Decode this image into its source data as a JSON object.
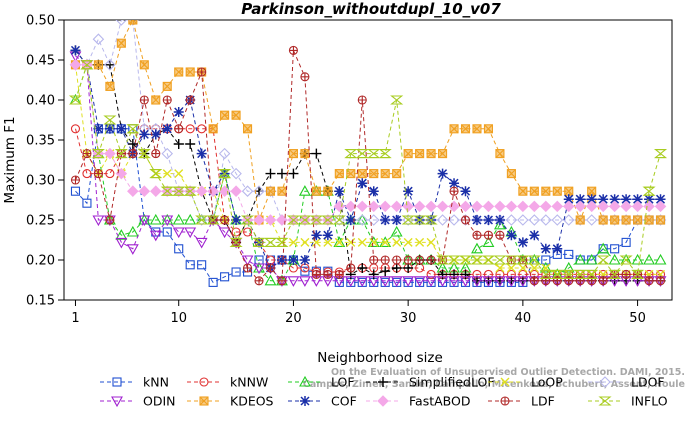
{
  "chart_data": {
    "type": "line",
    "title": "Parkinson_withoutdupl_10_v07",
    "xlabel": "Neighborhood size",
    "ylabel": "Maximum F1",
    "xlim": [
      0,
      53
    ],
    "ylim": [
      0.15,
      0.5
    ],
    "x_ticks": [
      1,
      10,
      20,
      30,
      40,
      50
    ],
    "y_ticks": [
      0.15,
      0.2,
      0.25,
      0.3,
      0.35,
      0.4,
      0.45,
      0.5
    ],
    "x": [
      1,
      2,
      3,
      4,
      5,
      6,
      7,
      8,
      9,
      10,
      11,
      12,
      13,
      14,
      15,
      16,
      17,
      18,
      19,
      20,
      21,
      22,
      23,
      24,
      25,
      26,
      27,
      28,
      29,
      30,
      31,
      32,
      33,
      34,
      35,
      36,
      37,
      38,
      39,
      40,
      41,
      42,
      43,
      44,
      45,
      46,
      47,
      48,
      49,
      50,
      51,
      52
    ],
    "series": [
      {
        "name": "kNN",
        "color": "#1f4fd1",
        "marker": "square",
        "values": [
          0.286,
          0.271,
          0.364,
          0.364,
          0.364,
          0.364,
          0.25,
          0.235,
          0.235,
          0.214,
          0.194,
          0.194,
          0.172,
          0.179,
          0.185,
          0.185,
          0.2,
          0.2,
          0.2,
          0.2,
          0.186,
          0.186,
          0.186,
          0.172,
          0.172,
          0.172,
          0.172,
          0.172,
          0.172,
          0.172,
          0.172,
          0.172,
          0.172,
          0.172,
          0.172,
          0.172,
          0.172,
          0.172,
          0.172,
          0.172,
          0.2,
          0.2,
          0.207,
          0.207,
          0.2,
          0.2,
          0.214,
          0.214,
          0.222,
          0.25,
          0.25,
          0.25
        ]
      },
      {
        "name": "kNNW",
        "color": "#e03030",
        "marker": "circle",
        "values": [
          0.364,
          0.308,
          0.308,
          0.308,
          0.333,
          0.333,
          0.364,
          0.364,
          0.364,
          0.364,
          0.364,
          0.364,
          0.364,
          0.25,
          0.235,
          0.235,
          0.222,
          0.2,
          0.2,
          0.19,
          0.19,
          0.185,
          0.185,
          0.185,
          0.19,
          0.19,
          0.19,
          0.19,
          0.19,
          0.19,
          0.19,
          0.182,
          0.182,
          0.182,
          0.182,
          0.182,
          0.182,
          0.182,
          0.182,
          0.182,
          0.182,
          0.182,
          0.182,
          0.182,
          0.182,
          0.182,
          0.182,
          0.182,
          0.182,
          0.182,
          0.182,
          0.182
        ]
      },
      {
        "name": "LOF",
        "color": "#22cc22",
        "marker": "triangle",
        "values": [
          0.4,
          0.444,
          0.333,
          0.25,
          0.231,
          0.235,
          0.25,
          0.25,
          0.25,
          0.25,
          0.25,
          0.25,
          0.25,
          0.308,
          0.25,
          0.25,
          0.19,
          0.174,
          0.174,
          0.2,
          0.286,
          0.286,
          0.286,
          0.222,
          0.25,
          0.25,
          0.222,
          0.222,
          0.235,
          0.2,
          0.2,
          0.2,
          0.19,
          0.19,
          0.19,
          0.214,
          0.222,
          0.244,
          0.235,
          0.2,
          0.2,
          0.19,
          0.182,
          0.19,
          0.2,
          0.2,
          0.214,
          0.2,
          0.2,
          0.2,
          0.2,
          0.2
        ]
      },
      {
        "name": "SimplifiedLOF",
        "color": "#000000",
        "marker": "plus",
        "values": [
          0.462,
          0.444,
          0.444,
          0.444,
          0.364,
          0.345,
          0.333,
          0.357,
          0.364,
          0.345,
          0.345,
          0.286,
          0.25,
          0.25,
          0.222,
          0.25,
          0.286,
          0.308,
          0.308,
          0.308,
          0.333,
          0.333,
          0.286,
          0.286,
          0.182,
          0.19,
          0.182,
          0.186,
          0.19,
          0.19,
          0.2,
          0.2,
          0.182,
          0.182,
          0.182,
          0.174,
          0.174,
          0.174,
          0.174,
          0.174,
          0.174,
          0.174,
          0.174,
          0.174,
          0.174,
          0.174,
          0.174,
          0.174,
          0.174,
          0.174,
          0.174,
          0.174
        ]
      },
      {
        "name": "LoOP",
        "color": "#e0e020",
        "marker": "x",
        "values": [
          0.444,
          0.333,
          0.308,
          0.333,
          0.308,
          0.333,
          0.333,
          0.308,
          0.308,
          0.308,
          0.286,
          0.286,
          0.286,
          0.25,
          0.25,
          0.25,
          0.25,
          0.25,
          0.222,
          0.222,
          0.222,
          0.222,
          0.222,
          0.222,
          0.222,
          0.222,
          0.222,
          0.222,
          0.222,
          0.222,
          0.222,
          0.222,
          0.2,
          0.2,
          0.2,
          0.2,
          0.2,
          0.19,
          0.19,
          0.19,
          0.19,
          0.19,
          0.182,
          0.182,
          0.182,
          0.182,
          0.182,
          0.182,
          0.182,
          0.182,
          0.182,
          0.182
        ]
      },
      {
        "name": "LDOF",
        "color": "#b8b8ec",
        "marker": "diamond",
        "values": [
          0.444,
          0.444,
          0.476,
          0.444,
          0.5,
          0.5,
          0.364,
          0.364,
          0.333,
          0.286,
          0.286,
          0.25,
          0.25,
          0.333,
          0.308,
          0.286,
          0.286,
          0.286,
          0.25,
          0.25,
          0.25,
          0.25,
          0.25,
          0.25,
          0.25,
          0.25,
          0.25,
          0.25,
          0.25,
          0.25,
          0.25,
          0.25,
          0.25,
          0.25,
          0.25,
          0.25,
          0.25,
          0.25,
          0.25,
          0.25,
          0.25,
          0.25,
          0.25,
          0.25,
          0.25,
          0.25,
          0.25,
          0.25,
          0.25,
          0.25,
          0.25,
          0.25
        ]
      },
      {
        "name": "ODIN",
        "color": "#a020d0",
        "marker": "triangle-down",
        "values": [
          0.455,
          0.444,
          0.25,
          0.25,
          0.222,
          0.214,
          0.25,
          0.231,
          0.25,
          0.235,
          0.235,
          0.222,
          0.25,
          0.235,
          0.222,
          0.2,
          0.19,
          0.19,
          0.174,
          0.174,
          0.174,
          0.174,
          0.174,
          0.174,
          0.174,
          0.174,
          0.174,
          0.174,
          0.174,
          0.174,
          0.174,
          0.174,
          0.174,
          0.174,
          0.174,
          0.174,
          0.174,
          0.174,
          0.174,
          0.174,
          0.174,
          0.174,
          0.174,
          0.174,
          0.174,
          0.174,
          0.174,
          0.174,
          0.174,
          0.174,
          0.174,
          0.174
        ]
      },
      {
        "name": "KDEOS",
        "color": "#f0a020",
        "marker": "square-x",
        "values": [
          0.444,
          0.444,
          0.444,
          0.417,
          0.471,
          0.5,
          0.444,
          0.4,
          0.417,
          0.435,
          0.435,
          0.435,
          0.364,
          0.381,
          0.381,
          0.364,
          0.25,
          0.286,
          0.286,
          0.333,
          0.333,
          0.286,
          0.286,
          0.308,
          0.308,
          0.308,
          0.308,
          0.308,
          0.308,
          0.333,
          0.333,
          0.333,
          0.333,
          0.364,
          0.364,
          0.364,
          0.364,
          0.333,
          0.308,
          0.286,
          0.286,
          0.286,
          0.286,
          0.286,
          0.25,
          0.286,
          0.25,
          0.25,
          0.25,
          0.25,
          0.25,
          0.25
        ]
      },
      {
        "name": "COF",
        "color": "#1a2fa8",
        "marker": "asterisk",
        "values": [
          0.462,
          0.444,
          0.364,
          0.364,
          0.364,
          0.333,
          0.357,
          0.357,
          0.364,
          0.385,
          0.4,
          0.333,
          0.286,
          0.308,
          0.25,
          0.25,
          0.222,
          0.19,
          0.2,
          0.2,
          0.2,
          0.231,
          0.231,
          0.286,
          0.25,
          0.296,
          0.286,
          0.25,
          0.25,
          0.286,
          0.25,
          0.25,
          0.308,
          0.296,
          0.286,
          0.25,
          0.25,
          0.25,
          0.231,
          0.222,
          0.231,
          0.214,
          0.214,
          0.276,
          0.276,
          0.276,
          0.276,
          0.276,
          0.276,
          0.276,
          0.276,
          0.276
        ]
      },
      {
        "name": "FastABOD",
        "color": "#f4a8e8",
        "marker": "diamond-filled",
        "values": [
          0.444,
          0.444,
          0.333,
          0.333,
          0.308,
          0.286,
          0.286,
          0.286,
          0.286,
          0.286,
          0.286,
          0.286,
          0.286,
          0.286,
          0.286,
          0.25,
          0.25,
          0.25,
          0.25,
          0.25,
          0.25,
          0.25,
          0.25,
          0.267,
          0.267,
          0.267,
          0.267,
          0.267,
          0.267,
          0.267,
          0.267,
          0.267,
          0.267,
          0.267,
          0.267,
          0.267,
          0.267,
          0.267,
          0.267,
          0.267,
          0.267,
          0.267,
          0.267,
          0.267,
          0.267,
          0.267,
          0.267,
          0.267,
          0.267,
          0.267,
          0.267,
          0.267
        ]
      },
      {
        "name": "LDF",
        "color": "#b02828",
        "marker": "circle-plus",
        "values": [
          0.3,
          0.333,
          0.308,
          0.25,
          0.333,
          0.333,
          0.4,
          0.333,
          0.4,
          0.364,
          0.4,
          0.435,
          0.25,
          0.25,
          0.222,
          0.19,
          0.174,
          0.19,
          0.174,
          0.462,
          0.429,
          0.182,
          0.182,
          0.182,
          0.19,
          0.4,
          0.2,
          0.2,
          0.2,
          0.2,
          0.2,
          0.2,
          0.2,
          0.286,
          0.25,
          0.231,
          0.231,
          0.231,
          0.2,
          0.2,
          0.174,
          0.174,
          0.174,
          0.174,
          0.174,
          0.174,
          0.174,
          0.182,
          0.182,
          0.182,
          0.174,
          0.174
        ]
      },
      {
        "name": "INFLO",
        "color": "#a8cc20",
        "marker": "hourglass",
        "values": [
          0.4,
          0.444,
          0.333,
          0.375,
          0.333,
          0.364,
          0.333,
          0.308,
          0.286,
          0.286,
          0.286,
          0.25,
          0.25,
          0.308,
          0.222,
          0.25,
          0.222,
          0.222,
          0.222,
          0.25,
          0.25,
          0.25,
          0.25,
          0.25,
          0.333,
          0.333,
          0.333,
          0.333,
          0.4,
          0.25,
          0.25,
          0.25,
          0.2,
          0.2,
          0.2,
          0.2,
          0.2,
          0.2,
          0.2,
          0.2,
          0.2,
          0.182,
          0.182,
          0.182,
          0.182,
          0.182,
          0.2,
          0.182,
          0.2,
          0.182,
          0.286,
          0.333
        ]
      }
    ],
    "legend": {
      "placement": "bottom",
      "columns": 6
    },
    "grid": false,
    "watermark": [
      "Campos, Zimek, Sander, Campello, Micenkova, Schubert, Assent, Houle",
      "On the Evaluation of Unsupervised Outlier Detection. DAMI, 2015."
    ]
  }
}
